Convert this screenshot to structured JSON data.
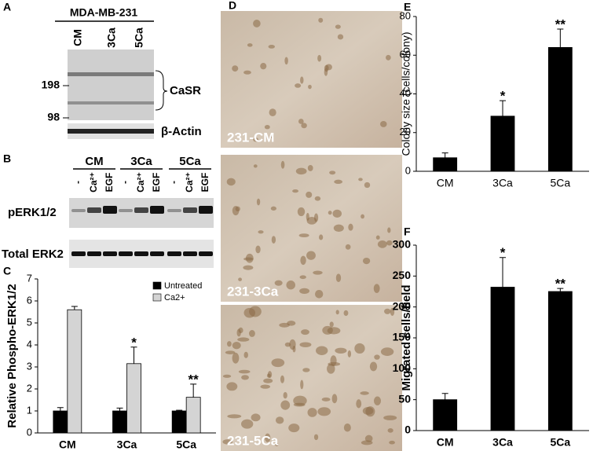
{
  "panels": {
    "A": {
      "label": "A",
      "cell_line": "MDA-MB-231",
      "lanes": [
        "CM",
        "3Ca",
        "5Ca"
      ],
      "markers": [
        "198",
        "98"
      ],
      "bands": [
        "CaSR",
        "β-Actin"
      ]
    },
    "B": {
      "label": "B",
      "groups": [
        "CM",
        "3Ca",
        "5Ca"
      ],
      "lanes": [
        "-",
        "Ca²⁺",
        "EGF"
      ],
      "bands": [
        "pERK1/2",
        "Total ERK2"
      ]
    },
    "C": {
      "label": "C"
    },
    "D": {
      "label": "D",
      "images": [
        "231-CM",
        "231-3Ca",
        "231-5Ca"
      ]
    },
    "E": {
      "label": "E"
    },
    "F": {
      "label": "F"
    }
  },
  "chart_data": [
    {
      "type": "bar",
      "ylabel": "Relative Phospho-ERK1/2",
      "categories": [
        "CM",
        "3Ca",
        "5Ca"
      ],
      "series": [
        {
          "name": "Untreated",
          "color": "#000000",
          "values": [
            1,
            1,
            1
          ],
          "errors": [
            0.15,
            0.13,
            0.03
          ]
        },
        {
          "name": "Ca2+",
          "color": "#d4d4d4",
          "values": [
            5.6,
            3.15,
            1.62
          ],
          "errors": [
            0.15,
            0.75,
            0.6
          ]
        }
      ],
      "annotations": [
        null,
        "*",
        "**"
      ],
      "ylim": [
        0,
        7
      ],
      "yticks": [
        0,
        1,
        2,
        3,
        4,
        5,
        6,
        7
      ],
      "legend": "top-right"
    },
    {
      "type": "bar",
      "ylabel": "Colony size (cells/colony)",
      "categories": [
        "CM",
        "3Ca",
        "5Ca"
      ],
      "series": [
        {
          "color": "#000000",
          "values": [
            7,
            28.5,
            64
          ],
          "errors": [
            2.5,
            8,
            9.5
          ]
        }
      ],
      "annotations": [
        null,
        "*",
        "**"
      ],
      "ylim": [
        0,
        80
      ],
      "yticks": [
        0,
        20,
        40,
        60,
        80
      ]
    },
    {
      "type": "bar",
      "ylabel": "Migrated cells/field",
      "categories": [
        "CM",
        "3Ca",
        "5Ca"
      ],
      "series": [
        {
          "color": "#000000",
          "values": [
            50,
            232,
            225
          ],
          "errors": [
            10,
            48,
            5
          ]
        }
      ],
      "annotations": [
        null,
        "*",
        "**"
      ],
      "ylim": [
        0,
        300
      ],
      "yticks": [
        0,
        50,
        100,
        150,
        200,
        250,
        300
      ]
    }
  ]
}
